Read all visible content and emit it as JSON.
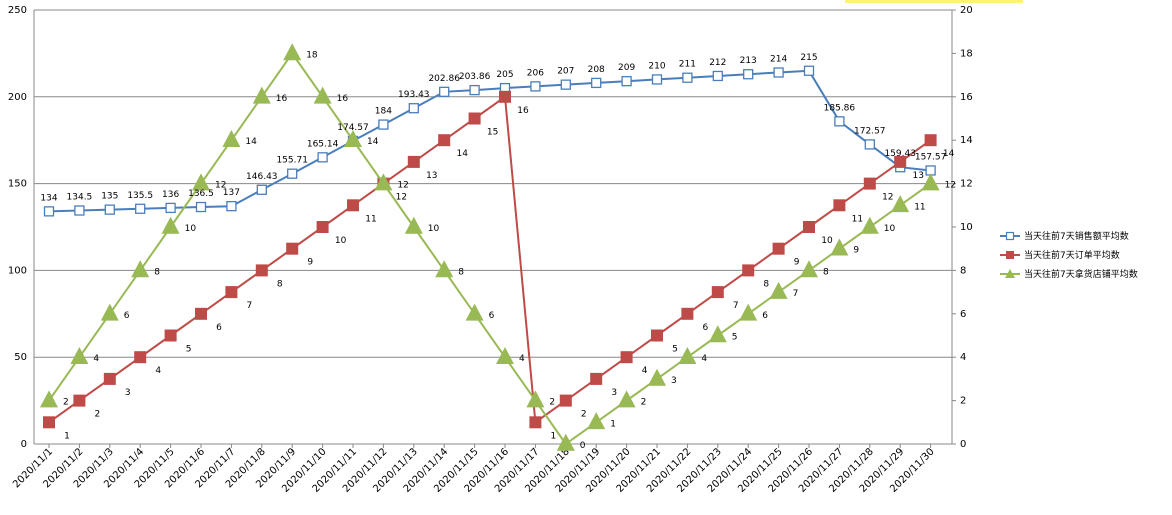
{
  "chart_data": {
    "type": "line",
    "categories": [
      "2020/11/1",
      "2020/11/2",
      "2020/11/3",
      "2020/11/4",
      "2020/11/5",
      "2020/11/6",
      "2020/11/7",
      "2020/11/8",
      "2020/11/9",
      "2020/11/10",
      "2020/11/11",
      "2020/11/12",
      "2020/11/13",
      "2020/11/14",
      "2020/11/15",
      "2020/11/16",
      "2020/11/17",
      "2020/11/18",
      "2020/11/19",
      "2020/11/20",
      "2020/11/21",
      "2020/11/22",
      "2020/11/23",
      "2020/11/24",
      "2020/11/25",
      "2020/11/26",
      "2020/11/27",
      "2020/11/28",
      "2020/11/29",
      "2020/11/30"
    ],
    "y_left": {
      "min": 0,
      "max": 250,
      "step": 50,
      "ticks": [
        "0",
        "50",
        "100",
        "150",
        "200",
        "250"
      ]
    },
    "y_right": {
      "min": 0,
      "max": 20,
      "step": 2,
      "ticks": [
        "0",
        "2",
        "4",
        "6",
        "8",
        "10",
        "12",
        "14",
        "16",
        "18",
        "20"
      ]
    },
    "grid": "horizontal",
    "legend_position": "right",
    "series": [
      {
        "name": "当天往前7天销售额平均数",
        "axis": "left",
        "color": "#4a7ebb",
        "marker": "hollow-square",
        "values": [
          134,
          134.5,
          135,
          135.5,
          136,
          136.5,
          137,
          146.43,
          155.71,
          165.14,
          174.57,
          184,
          193.43,
          202.86,
          203.86,
          205,
          206,
          207,
          208,
          209,
          210,
          211,
          212,
          213,
          214,
          215,
          185.86,
          172.57,
          159.43,
          157.57
        ],
        "labels": [
          "134",
          "134.5",
          "135",
          "135.5",
          "136",
          "136.5",
          "137",
          "146.43",
          "155.71",
          "165.14",
          "174.57",
          "184",
          "193.43",
          "202.86",
          "203.86",
          "205",
          "206",
          "207",
          "208",
          "209",
          "210",
          "211",
          "212",
          "213",
          "214",
          "215",
          "185.86",
          "172.57",
          "159.43",
          "157.57"
        ]
      },
      {
        "name": "当天往前7天订单平均数",
        "axis": "right",
        "color": "#be4b48",
        "marker": "filled-square",
        "values": [
          1,
          2,
          3,
          4,
          5,
          6,
          7,
          8,
          9,
          10,
          11,
          12,
          13,
          14,
          15,
          16,
          1,
          2,
          3,
          4,
          5,
          6,
          7,
          8,
          9,
          10,
          11,
          12,
          13,
          14
        ],
        "labels": [
          "1",
          "2",
          "3",
          "4",
          "5",
          "6",
          "7",
          "8",
          "9",
          "10",
          "11",
          "12",
          "13",
          "14",
          "15",
          "16",
          "1",
          "2",
          "3",
          "4",
          "5",
          "6",
          "7",
          "8",
          "9",
          "10",
          "11",
          "12",
          "13",
          "14"
        ]
      },
      {
        "name": "当天往前7天拿货店铺平均数",
        "axis": "right",
        "color": "#98b954",
        "marker": "triangle",
        "values": [
          2,
          4,
          6,
          8,
          10,
          12,
          14,
          16,
          18,
          16,
          14,
          12,
          10,
          8,
          6,
          4,
          2,
          0,
          1,
          2,
          3,
          4,
          5,
          6,
          7,
          8,
          9,
          10,
          11,
          12
        ],
        "labels": [
          "2",
          "4",
          "6",
          "8",
          "10",
          "12",
          "14",
          "16",
          "18",
          "16",
          "14",
          "12",
          "10",
          "8",
          "6",
          "4",
          "2",
          "0",
          "1",
          "2",
          "3",
          "4",
          "5",
          "6",
          "7",
          "8",
          "9",
          "10",
          "11",
          "12"
        ]
      }
    ]
  }
}
